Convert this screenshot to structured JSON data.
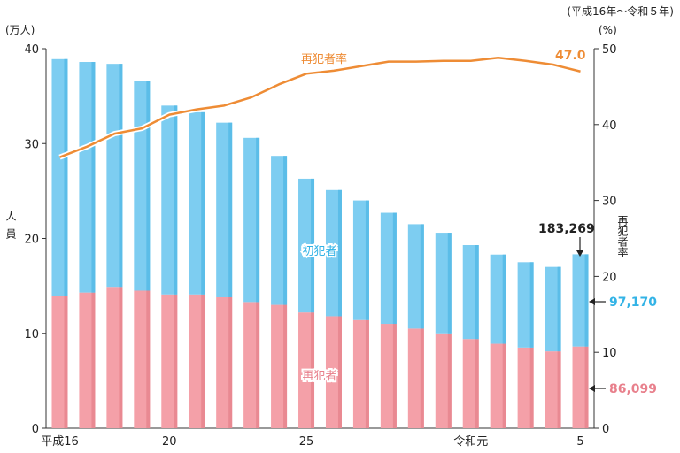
{
  "chart_data": {
    "type": "bar",
    "stacked": true,
    "period_note": "(平成16年～令和５年)",
    "y_left": {
      "unit": "(万人)",
      "label": "人員",
      "range": [
        0,
        40
      ],
      "ticks": [
        "0",
        "10",
        "20",
        "30",
        "40"
      ]
    },
    "y_right": {
      "unit": "(%)",
      "label": "再犯者率",
      "range": [
        0,
        50
      ],
      "ticks": [
        "0",
        "10",
        "20",
        "30",
        "40",
        "50"
      ]
    },
    "x_tick_labels": [
      {
        "index": 0,
        "text": "平成16"
      },
      {
        "index": 4,
        "text": "20"
      },
      {
        "index": 9,
        "text": "25"
      },
      {
        "index": 15,
        "text": "令和元"
      },
      {
        "index": 19,
        "text": "5"
      }
    ],
    "categories": [
      "H16",
      "H17",
      "H18",
      "H19",
      "H20",
      "H21",
      "H22",
      "H23",
      "H24",
      "H25",
      "H26",
      "H27",
      "H28",
      "H29",
      "H30",
      "R1",
      "R2",
      "R3",
      "R4",
      "R5"
    ],
    "series": [
      {
        "name": "再犯者",
        "color": "#f4a0a8",
        "axis": "left",
        "values": [
          13.9,
          14.3,
          14.9,
          14.5,
          14.1,
          14.1,
          13.8,
          13.3,
          13.0,
          12.2,
          11.8,
          11.4,
          11.0,
          10.5,
          10.0,
          9.4,
          8.9,
          8.5,
          8.1,
          8.61
        ]
      },
      {
        "name": "初犯者",
        "color": "#7dcdf1",
        "axis": "left",
        "values": [
          25.0,
          24.3,
          23.5,
          22.1,
          19.9,
          19.2,
          18.4,
          17.3,
          15.7,
          14.1,
          13.3,
          12.6,
          11.7,
          11.0,
          10.6,
          9.9,
          9.4,
          9.0,
          8.9,
          9.72
        ]
      },
      {
        "name": "再犯者率",
        "color": "#ee8c35",
        "axis": "right",
        "type": "line",
        "values": [
          35.7,
          37.1,
          38.8,
          39.5,
          41.3,
          42.0,
          42.5,
          43.6,
          45.3,
          46.7,
          47.1,
          47.7,
          48.3,
          48.3,
          48.4,
          48.4,
          48.8,
          48.4,
          47.9,
          47.0
        ]
      }
    ],
    "annotations": {
      "total_label": "183,269",
      "first_offender_value": "97,170",
      "repeat_offender_value": "86,099",
      "rate_label": "47.0"
    },
    "colors": {
      "repeat": "#f4a0a8",
      "repeat_text": "#e8808c",
      "first": "#7dcdf1",
      "first_text": "#33b3e6",
      "rate": "#ee8c35"
    }
  }
}
